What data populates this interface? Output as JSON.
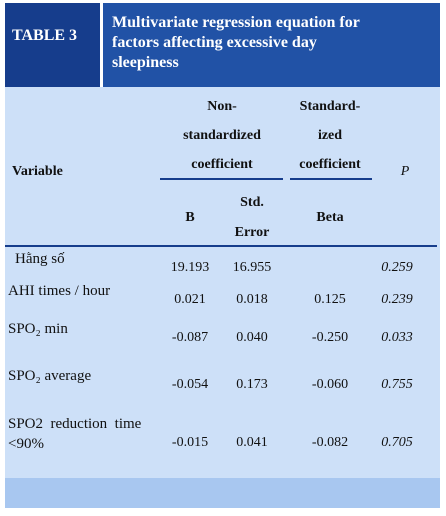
{
  "header": {
    "label": "TABLE 3",
    "title_lines": [
      "Multivariate regression equation for",
      "factors affecting excessive day",
      "sleepiness"
    ]
  },
  "table": {
    "variable_header": "Variable",
    "group_headers": [
      [
        "Non-",
        "standardized",
        "coefficient"
      ],
      [
        "Standard-",
        "ized",
        "coefficient"
      ]
    ],
    "p_header": "P",
    "sub_headers": [
      [
        "B"
      ],
      [
        "Std.",
        "Error"
      ],
      [
        "Beta"
      ]
    ],
    "rows": [
      [
        [
          "Hằng số"
        ],
        "19.193",
        "16.955",
        "",
        "0.259"
      ],
      [
        [
          "AHI times / hour"
        ],
        "0.021",
        "0.018",
        "0.125",
        "0.239"
      ],
      [
        [
          "SPO₂ min"
        ],
        "-0.087",
        "0.040",
        "-0.250",
        "0.033"
      ],
      [
        [
          "SPO₂ average"
        ],
        "-0.054",
        "0.173",
        "-0.060",
        "0.755"
      ],
      [
        [
          "SPO2  reduction  time",
          "<90%"
        ],
        "-0.015",
        "0.041",
        "-0.082",
        "0.705"
      ]
    ]
  }
}
